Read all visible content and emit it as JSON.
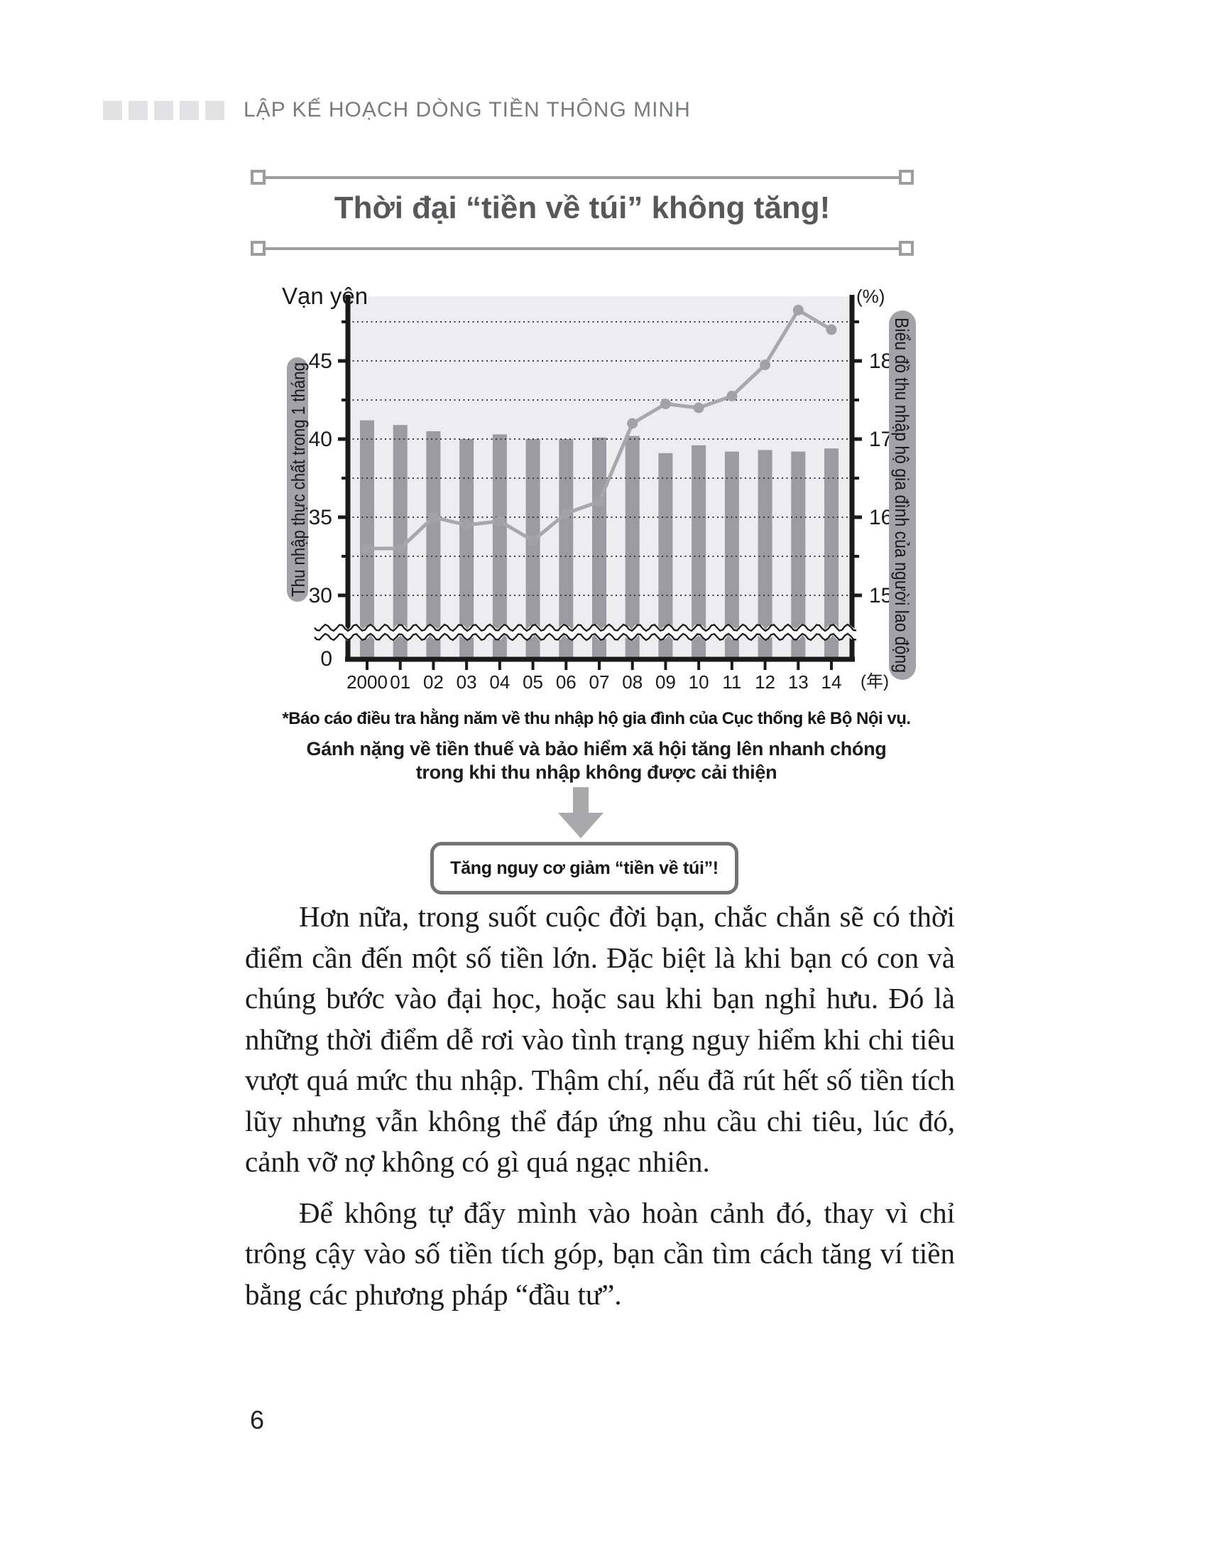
{
  "header": {
    "title": "LẬP KẾ HOẠCH DÒNG TIỀN THÔNG MINH",
    "square_count": 5
  },
  "figure": {
    "title": "Thời đại “tiền về túi” không tăng!",
    "footnote": "*Báo cáo điều tra hằng năm về thu nhập hộ gia đình của Cục thống kê Bộ Nội vụ.",
    "caption_line1": "Gánh nặng về tiền thuế và bảo hiểm xã hội tăng lên nhanh chóng",
    "caption_line2": "trong khi thu nhập không được cải thiện",
    "conclusion_box": "Tăng nguy cơ giảm “tiền về túi”!"
  },
  "chart_data": {
    "type": "bar",
    "title": "Thời đại “tiền về túi” không tăng!",
    "categories": [
      "2000",
      "01",
      "02",
      "03",
      "04",
      "05",
      "06",
      "07",
      "08",
      "09",
      "10",
      "11",
      "12",
      "13",
      "14"
    ],
    "x_axis_unit": "(年)",
    "series": [
      {
        "name": "Thu nhập thực chất trong 1 tháng",
        "type": "bar",
        "axis": "left",
        "unit": "vạn yên",
        "values": [
          41.2,
          40.9,
          40.5,
          40.0,
          40.3,
          40.0,
          40.0,
          40.1,
          40.2,
          39.1,
          39.6,
          39.2,
          39.3,
          39.2,
          39.4
        ]
      },
      {
        "name": "Biểu đồ thu nhập hộ gia đình của người lao động",
        "type": "line",
        "axis": "right",
        "unit": "%",
        "values": [
          15.6,
          15.6,
          16.0,
          15.9,
          15.95,
          15.7,
          16.05,
          16.2,
          17.2,
          17.45,
          17.4,
          17.55,
          17.95,
          18.65,
          18.4
        ]
      }
    ],
    "left_axis": {
      "title": "Vạn yên",
      "major_ticks": [
        45,
        40,
        35,
        30
      ],
      "minor_ticks": [
        47.5,
        42.5,
        37.5,
        32.5
      ],
      "zero_label": "0",
      "axis_break": true
    },
    "right_axis": {
      "title": "(%)",
      "major_ticks": [
        18,
        17,
        16,
        15
      ],
      "minor_ticks": [
        18.5,
        17.5,
        16.5,
        15.5
      ],
      "gridlines": [
        18.5,
        18,
        17.5,
        17,
        16.5,
        16,
        15.5,
        15
      ]
    },
    "grid": "dotted-horizontal",
    "legend_position": "none"
  },
  "body": {
    "paragraph1": "Hơn nữa, trong suốt cuộc đời bạn, chắc chắn sẽ có thời điểm cần đến một số tiền lớn. Đặc biệt là khi bạn có con và chúng bước vào đại học, hoặc sau khi bạn nghỉ hưu. Đó là những thời điểm dễ rơi vào tình trạng nguy hiểm khi chi tiêu vượt quá mức thu nhập. Thậm chí, nếu đã rút hết số tiền tích lũy nhưng vẫn không thể đáp ứng nhu cầu chi tiêu, lúc đó, cảnh vỡ nợ không có gì quá ngạc nhiên.",
    "paragraph2": "Để không tự đẩy mình vào hoàn cảnh đó, thay vì chỉ trông cậy vào số tiền tích góp, bạn cần tìm cách tăng ví tiền bằng các phương pháp “đầu tư”."
  },
  "footer": {
    "page_number": "6"
  },
  "colors": {
    "bar": "#9b9ba1",
    "line": "#a8a8ab",
    "marker": "#a2a2a6",
    "plot_background": "#ededef",
    "band_label_background": "#a2a2a7",
    "band_label_text": "#ffffff",
    "axis": "#1a1a1a",
    "gridline": "#3a3a3a",
    "title_text": "#58585b",
    "rule": "#9d9da0",
    "arrow": "#a9a9ac",
    "box_border": "#737376",
    "header_text": "#7a7b7d",
    "header_square": "#e2e2e4"
  }
}
